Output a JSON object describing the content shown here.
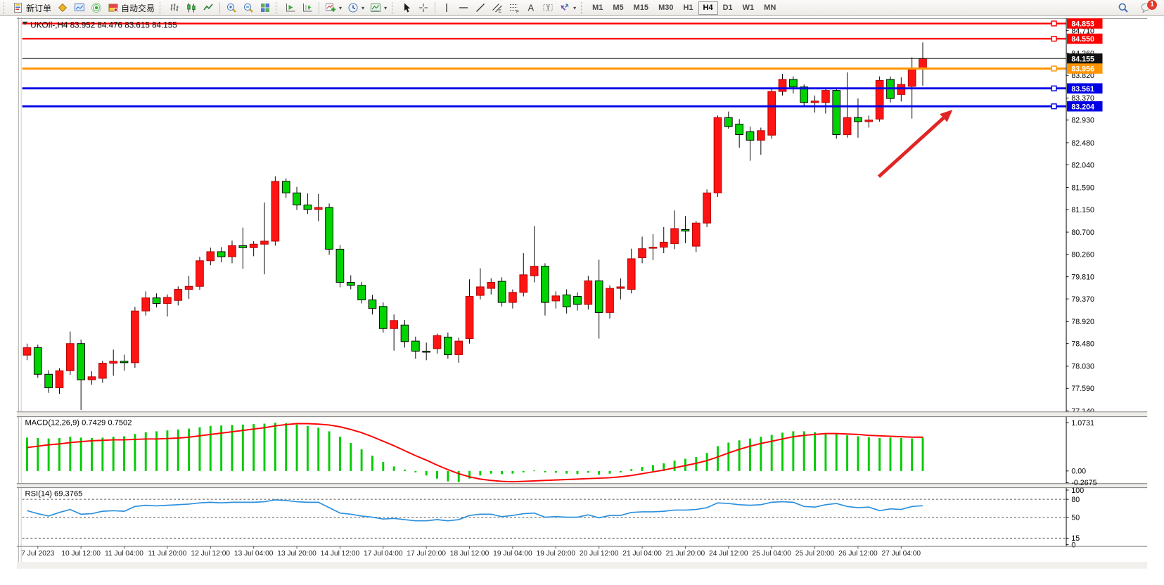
{
  "toolbar": {
    "groups": [
      {
        "grip": true,
        "items": [
          {
            "icon": "new-order-icon",
            "label": "新订单"
          },
          {
            "icon": "charts-profile-icon",
            "label": ""
          },
          {
            "icon": "market-watch-icon",
            "label": ""
          },
          {
            "icon": "signals-icon",
            "label": ""
          },
          {
            "icon": "autotrade-icon",
            "label": "自动交易"
          }
        ]
      },
      {
        "grip": true,
        "items": [
          {
            "icon": "bar-chart-icon"
          },
          {
            "icon": "candlestick-icon"
          },
          {
            "icon": "line-chart-icon"
          }
        ]
      },
      {
        "sep": true,
        "items": [
          {
            "icon": "zoom-in-icon"
          },
          {
            "icon": "zoom-out-icon"
          },
          {
            "icon": "tile-windows-icon"
          }
        ]
      },
      {
        "grip": true,
        "items": [
          {
            "icon": "auto-scroll-icon"
          },
          {
            "icon": "chart-shift-icon"
          }
        ]
      },
      {
        "sep": true,
        "items": [
          {
            "icon": "add-indicator-icon",
            "dd": true
          },
          {
            "icon": "periods-icon",
            "dd": true
          },
          {
            "icon": "templates-icon",
            "dd": true
          }
        ]
      },
      {
        "grip": true,
        "items": [
          {
            "icon": "cursor-icon"
          },
          {
            "icon": "crosshair-icon"
          }
        ]
      },
      {
        "sep": true,
        "items": [
          {
            "icon": "vertical-line-icon"
          },
          {
            "icon": "horizontal-line-icon"
          },
          {
            "icon": "trendline-icon"
          },
          {
            "icon": "channel-icon"
          },
          {
            "icon": "fibonacci-icon"
          },
          {
            "icon": "text-icon"
          },
          {
            "icon": "label-icon"
          },
          {
            "icon": "arrows-icon",
            "dd": true
          }
        ]
      }
    ],
    "timeframes": [
      "M1",
      "M5",
      "M15",
      "M30",
      "H1",
      "H4",
      "D1",
      "W1",
      "MN"
    ],
    "active_timeframe": "H4",
    "notification_count": "1"
  },
  "chart": {
    "title": "UKOIl-,H4  83.952 84.476 83.615 84.155",
    "symbol_period": "UKOIl-,H4",
    "open": "83.952",
    "high": "84.476",
    "low": "83.615",
    "close": "84.155"
  },
  "chart_data": {
    "type": "candlestick",
    "title": "UKOIl-,H4",
    "timeframe": "H4",
    "price_axis_ticks": [
      "84.710",
      "84.260",
      "83.820",
      "83.370",
      "82.930",
      "82.480",
      "82.040",
      "81.590",
      "81.150",
      "80.700",
      "80.260",
      "79.810",
      "79.370",
      "78.920",
      "78.480",
      "78.030",
      "77.590",
      "77.140"
    ],
    "hlines": [
      {
        "value": 84.853,
        "label": "84.853",
        "color": "#ff0000",
        "width": 2.5,
        "handle": true
      },
      {
        "value": 84.55,
        "label": "84.550",
        "color": "#ff0000",
        "width": 2.5,
        "handle": true
      },
      {
        "value": 84.155,
        "label": "84.155",
        "color": "#111111",
        "width": 1,
        "handle": false
      },
      {
        "value": 83.956,
        "label": "83.956",
        "color": "#ff9500",
        "width": 3,
        "handle": true
      },
      {
        "value": 83.561,
        "label": "83.561",
        "color": "#0000e6",
        "width": 3,
        "handle": true
      },
      {
        "value": 83.204,
        "label": "83.204",
        "color": "#0000e6",
        "width": 3,
        "handle": true
      }
    ],
    "time_labels": [
      "7 Jul 2023",
      "10 Jul 12:00",
      "11 Jul 04:00",
      "11 Jul 20:00",
      "12 Jul 12:00",
      "13 Jul 04:00",
      "13 Jul 20:00",
      "14 Jul 12:00",
      "17 Jul 04:00",
      "17 Jul 20:00",
      "18 Jul 12:00",
      "19 Jul 04:00",
      "19 Jul 20:00",
      "20 Jul 12:00",
      "21 Jul 04:00",
      "21 Jul 20:00",
      "24 Jul 12:00",
      "25 Jul 04:00",
      "25 Jul 20:00",
      "26 Jul 12:00",
      "27 Jul 04:00"
    ],
    "time_label_first_index": 1,
    "time_label_step": 4,
    "candles": [
      [
        78.25,
        78.48,
        78.15,
        78.4
      ],
      [
        78.4,
        78.46,
        77.8,
        77.87
      ],
      [
        77.87,
        77.95,
        77.5,
        77.6
      ],
      [
        77.6,
        77.99,
        77.48,
        77.94
      ],
      [
        77.94,
        78.72,
        77.86,
        78.48
      ],
      [
        78.48,
        78.56,
        77.16,
        77.76
      ],
      [
        77.76,
        77.93,
        77.66,
        77.82
      ],
      [
        77.79,
        78.14,
        77.7,
        78.09
      ],
      [
        78.09,
        78.36,
        77.84,
        78.13
      ],
      [
        78.13,
        78.26,
        77.94,
        78.1
      ],
      [
        78.1,
        79.21,
        78.0,
        79.13
      ],
      [
        79.13,
        79.52,
        79.04,
        79.39
      ],
      [
        79.39,
        79.48,
        79.2,
        79.28
      ],
      [
        79.28,
        79.46,
        79.02,
        79.4
      ],
      [
        79.34,
        79.62,
        79.24,
        79.56
      ],
      [
        79.56,
        79.83,
        79.37,
        79.62
      ],
      [
        79.62,
        80.21,
        79.55,
        80.13
      ],
      [
        80.13,
        80.39,
        80.04,
        80.31
      ],
      [
        80.31,
        80.4,
        80.1,
        80.21
      ],
      [
        80.21,
        80.53,
        80.08,
        80.43
      ],
      [
        80.43,
        80.79,
        79.97,
        80.39
      ],
      [
        80.39,
        80.52,
        80.22,
        80.46
      ],
      [
        80.46,
        81.29,
        79.86,
        80.52
      ],
      [
        80.52,
        81.81,
        80.43,
        81.71
      ],
      [
        81.71,
        81.77,
        81.38,
        81.48
      ],
      [
        81.48,
        81.6,
        81.14,
        81.24
      ],
      [
        81.24,
        81.47,
        81.06,
        81.15
      ],
      [
        81.15,
        81.46,
        80.92,
        81.19
      ],
      [
        81.19,
        81.27,
        80.25,
        80.36
      ],
      [
        80.36,
        80.44,
        79.6,
        79.7
      ],
      [
        79.7,
        79.84,
        79.56,
        79.64
      ],
      [
        79.64,
        79.71,
        79.28,
        79.35
      ],
      [
        79.35,
        79.45,
        79.06,
        79.18
      ],
      [
        79.22,
        79.3,
        78.7,
        78.78
      ],
      [
        78.78,
        79.06,
        78.34,
        78.94
      ],
      [
        78.85,
        78.95,
        78.4,
        78.52
      ],
      [
        78.53,
        78.62,
        78.18,
        78.33
      ],
      [
        78.33,
        78.5,
        78.15,
        78.31
      ],
      [
        78.38,
        78.68,
        78.28,
        78.64
      ],
      [
        78.61,
        78.7,
        78.18,
        78.26
      ],
      [
        78.26,
        78.6,
        78.1,
        78.53
      ],
      [
        78.58,
        79.76,
        78.48,
        79.42
      ],
      [
        79.44,
        79.98,
        79.36,
        79.61
      ],
      [
        79.58,
        79.78,
        79.46,
        79.7
      ],
      [
        79.72,
        79.8,
        79.22,
        79.3
      ],
      [
        79.3,
        79.56,
        79.18,
        79.5
      ],
      [
        79.5,
        80.28,
        79.42,
        79.85
      ],
      [
        79.83,
        80.82,
        79.7,
        80.02
      ],
      [
        80.02,
        80.08,
        79.04,
        79.3
      ],
      [
        79.33,
        79.52,
        79.18,
        79.43
      ],
      [
        79.45,
        79.56,
        79.08,
        79.21
      ],
      [
        79.42,
        79.5,
        79.14,
        79.26
      ],
      [
        79.26,
        79.83,
        79.16,
        79.73
      ],
      [
        79.73,
        80.15,
        78.58,
        79.1
      ],
      [
        79.1,
        79.64,
        78.98,
        79.58
      ],
      [
        79.58,
        79.78,
        79.36,
        79.61
      ],
      [
        79.56,
        80.37,
        79.48,
        80.17
      ],
      [
        80.19,
        80.61,
        80.08,
        80.37
      ],
      [
        80.38,
        80.66,
        80.14,
        80.4
      ],
      [
        80.4,
        80.8,
        80.28,
        80.5
      ],
      [
        80.47,
        81.13,
        80.36,
        80.77
      ],
      [
        80.75,
        81.02,
        80.48,
        80.72
      ],
      [
        80.42,
        80.92,
        80.3,
        80.88
      ],
      [
        80.88,
        81.55,
        80.8,
        81.48
      ],
      [
        81.48,
        83.02,
        81.4,
        82.98
      ],
      [
        82.98,
        83.1,
        82.76,
        82.8
      ],
      [
        82.85,
        82.95,
        82.38,
        82.64
      ],
      [
        82.7,
        82.8,
        82.12,
        82.53
      ],
      [
        82.53,
        82.78,
        82.24,
        82.72
      ],
      [
        82.63,
        83.55,
        82.56,
        83.5
      ],
      [
        83.5,
        83.85,
        83.42,
        83.74
      ],
      [
        83.74,
        83.8,
        83.46,
        83.59
      ],
      [
        83.59,
        83.64,
        83.2,
        83.28
      ],
      [
        83.28,
        83.42,
        83.08,
        83.31
      ],
      [
        83.28,
        83.56,
        83.06,
        83.52
      ],
      [
        83.52,
        83.58,
        82.56,
        82.64
      ],
      [
        82.64,
        83.88,
        82.58,
        82.98
      ],
      [
        82.98,
        83.36,
        82.58,
        82.9
      ],
      [
        82.9,
        83.02,
        82.78,
        82.93
      ],
      [
        82.95,
        83.8,
        82.9,
        83.72
      ],
      [
        83.74,
        83.8,
        83.28,
        83.36
      ],
      [
        83.44,
        83.78,
        83.3,
        83.64
      ],
      [
        83.6,
        84.18,
        82.96,
        83.94
      ],
      [
        83.952,
        84.476,
        83.615,
        84.155
      ]
    ],
    "bull_color": "#ff1414",
    "bear_color": "#00d400",
    "macd": {
      "label": "MACD(12,26,9) 0.7429 0.7502",
      "scale_ticks": [
        {
          "label": "1.0731",
          "v": 1.0731
        },
        {
          "label": "0.00",
          "v": 0
        },
        {
          "label": "-0.2675",
          "v": -0.2675
        }
      ],
      "hist_color": "#00cc00",
      "signal_color": "#ff0000",
      "hist": [
        0.74,
        0.73,
        0.72,
        0.73,
        0.76,
        0.74,
        0.73,
        0.74,
        0.76,
        0.77,
        0.82,
        0.86,
        0.88,
        0.9,
        0.92,
        0.94,
        0.97,
        1.0,
        1.01,
        1.02,
        1.03,
        1.04,
        1.05,
        1.07,
        1.06,
        1.03,
        1.0,
        0.96,
        0.88,
        0.76,
        0.62,
        0.48,
        0.34,
        0.2,
        0.1,
        0.03,
        -0.03,
        -0.1,
        -0.17,
        -0.23,
        -0.25,
        -0.17,
        -0.1,
        -0.06,
        -0.07,
        -0.06,
        -0.03,
        0.01,
        -0.03,
        -0.04,
        -0.06,
        -0.07,
        -0.04,
        -0.08,
        -0.06,
        -0.03,
        0.04,
        0.09,
        0.13,
        0.17,
        0.23,
        0.27,
        0.31,
        0.4,
        0.55,
        0.63,
        0.68,
        0.72,
        0.76,
        0.8,
        0.85,
        0.88,
        0.88,
        0.86,
        0.83,
        0.82,
        0.79,
        0.77,
        0.75,
        0.73,
        0.74,
        0.73,
        0.72,
        0.7429
      ],
      "signal": [
        0.52,
        0.55,
        0.58,
        0.6,
        0.63,
        0.65,
        0.67,
        0.68,
        0.69,
        0.69,
        0.7,
        0.71,
        0.71,
        0.72,
        0.73,
        0.75,
        0.78,
        0.81,
        0.84,
        0.87,
        0.9,
        0.93,
        0.96,
        1.0,
        1.03,
        1.05,
        1.05,
        1.04,
        1.02,
        0.98,
        0.92,
        0.85,
        0.76,
        0.66,
        0.56,
        0.45,
        0.34,
        0.24,
        0.13,
        0.03,
        -0.06,
        -0.13,
        -0.18,
        -0.21,
        -0.23,
        -0.24,
        -0.23,
        -0.22,
        -0.21,
        -0.2,
        -0.19,
        -0.18,
        -0.17,
        -0.16,
        -0.15,
        -0.13,
        -0.1,
        -0.06,
        -0.02,
        0.02,
        0.07,
        0.12,
        0.17,
        0.23,
        0.31,
        0.4,
        0.48,
        0.55,
        0.61,
        0.66,
        0.71,
        0.76,
        0.79,
        0.81,
        0.83,
        0.83,
        0.82,
        0.81,
        0.79,
        0.78,
        0.77,
        0.76,
        0.75,
        0.7502
      ]
    },
    "rsi": {
      "label": "RSI(14) 69.3765",
      "line_color": "#2a8fdd",
      "scale_ticks": [
        {
          "label": "100",
          "v": 100
        },
        {
          "label": "80",
          "v": 80,
          "dashed": true
        },
        {
          "label": "50",
          "v": 50,
          "dashed": true
        },
        {
          "label": "15",
          "v": 15,
          "dashed": true
        },
        {
          "label": "0",
          "v": 0
        }
      ],
      "values": [
        61,
        56,
        52,
        58,
        63,
        55,
        56,
        60,
        61,
        60,
        68,
        70,
        69,
        70,
        71,
        72,
        74,
        75,
        74,
        75,
        75,
        75,
        76,
        79,
        78,
        76,
        75,
        75,
        66,
        57,
        55,
        52,
        50,
        47,
        48,
        46,
        44,
        44,
        46,
        44,
        46,
        53,
        55,
        55,
        51,
        53,
        56,
        57,
        50,
        51,
        50,
        50,
        54,
        49,
        53,
        53,
        58,
        59,
        59,
        60,
        62,
        62,
        63,
        66,
        74,
        73,
        71,
        70,
        71,
        75,
        76,
        75,
        68,
        67,
        71,
        73,
        68,
        66,
        67,
        61,
        64,
        63,
        68,
        69.38
      ]
    },
    "arrow": {
      "from": [
        1262,
        258
      ],
      "to": [
        1370,
        160
      ],
      "color": "#e02525",
      "width": 5
    }
  }
}
